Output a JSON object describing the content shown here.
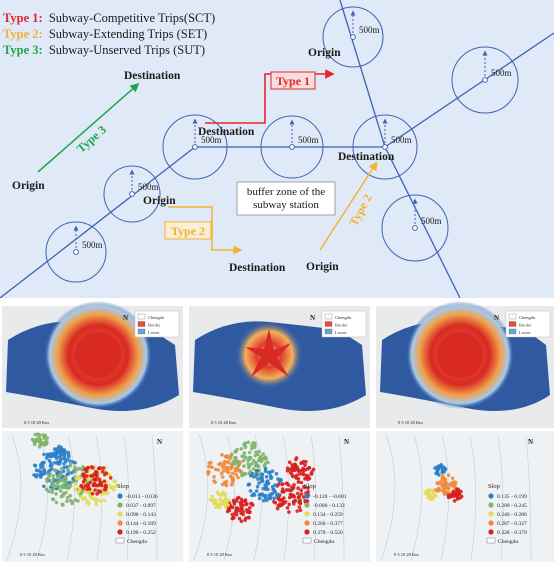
{
  "legend": {
    "type1": {
      "prefix": "Type 1:",
      "text": "Subway-Competitive Trips(SCT)",
      "color": "#e8252b"
    },
    "type2": {
      "prefix": "Type 2:",
      "text": "Subway-Extending Trips (SET)",
      "color": "#f4b233"
    },
    "type3": {
      "prefix": "Type 3:",
      "text": "Subway-Unserved Trips (SUT)",
      "color": "#1fa64a"
    }
  },
  "diagram": {
    "buffer_label": "500m",
    "origin_label": "Origin",
    "destination_label": "Destination",
    "type1_label": "Type 1",
    "type2_label": "Type 2",
    "type3_label": "Type 3",
    "box_line1": "buffer zone of the",
    "box_line2": "subway station",
    "line_color": "#3f63b6",
    "panel_bg": "#dfe9f7"
  },
  "maps": {
    "heat_legend": [
      "Chengdu",
      "Border",
      "Lower"
    ],
    "scale_label": "0  5 10    20 Km",
    "north_label": "N",
    "panels": [
      {
        "legend_title": "Slop",
        "classes": [
          "-0.013 - 0.036",
          "0.037 - 0.097",
          "0.098 - 0.143",
          "0.144 - 0.189",
          "0.190 - 0.252"
        ],
        "colors": [
          "#2a7fc8",
          "#7eb46a",
          "#e2dc5a",
          "#f08a3a",
          "#d81e1e"
        ],
        "footer": "Chengdu"
      },
      {
        "legend_title": "Slop",
        "classes": [
          "-0.120 - -0.001",
          "-0.000 - 0.133",
          "0.134 - 0.259",
          "0.260 - 0.377",
          "0.378 - 0.550"
        ],
        "colors": [
          "#2a7fc8",
          "#7eb46a",
          "#e2dc5a",
          "#f08a3a",
          "#d81e1e"
        ],
        "footer": "Chengdu"
      },
      {
        "legend_title": "Slop",
        "classes": [
          "0.135 - 0.199",
          "0.200 - 0.245",
          "0.246 - 0.286",
          "0.287 - 0.327",
          "0.328 - 0.379"
        ],
        "colors": [
          "#2a7fc8",
          "#7eb46a",
          "#e2dc5a",
          "#f08a3a",
          "#d81e1e"
        ],
        "footer": "Chengdu"
      }
    ]
  }
}
